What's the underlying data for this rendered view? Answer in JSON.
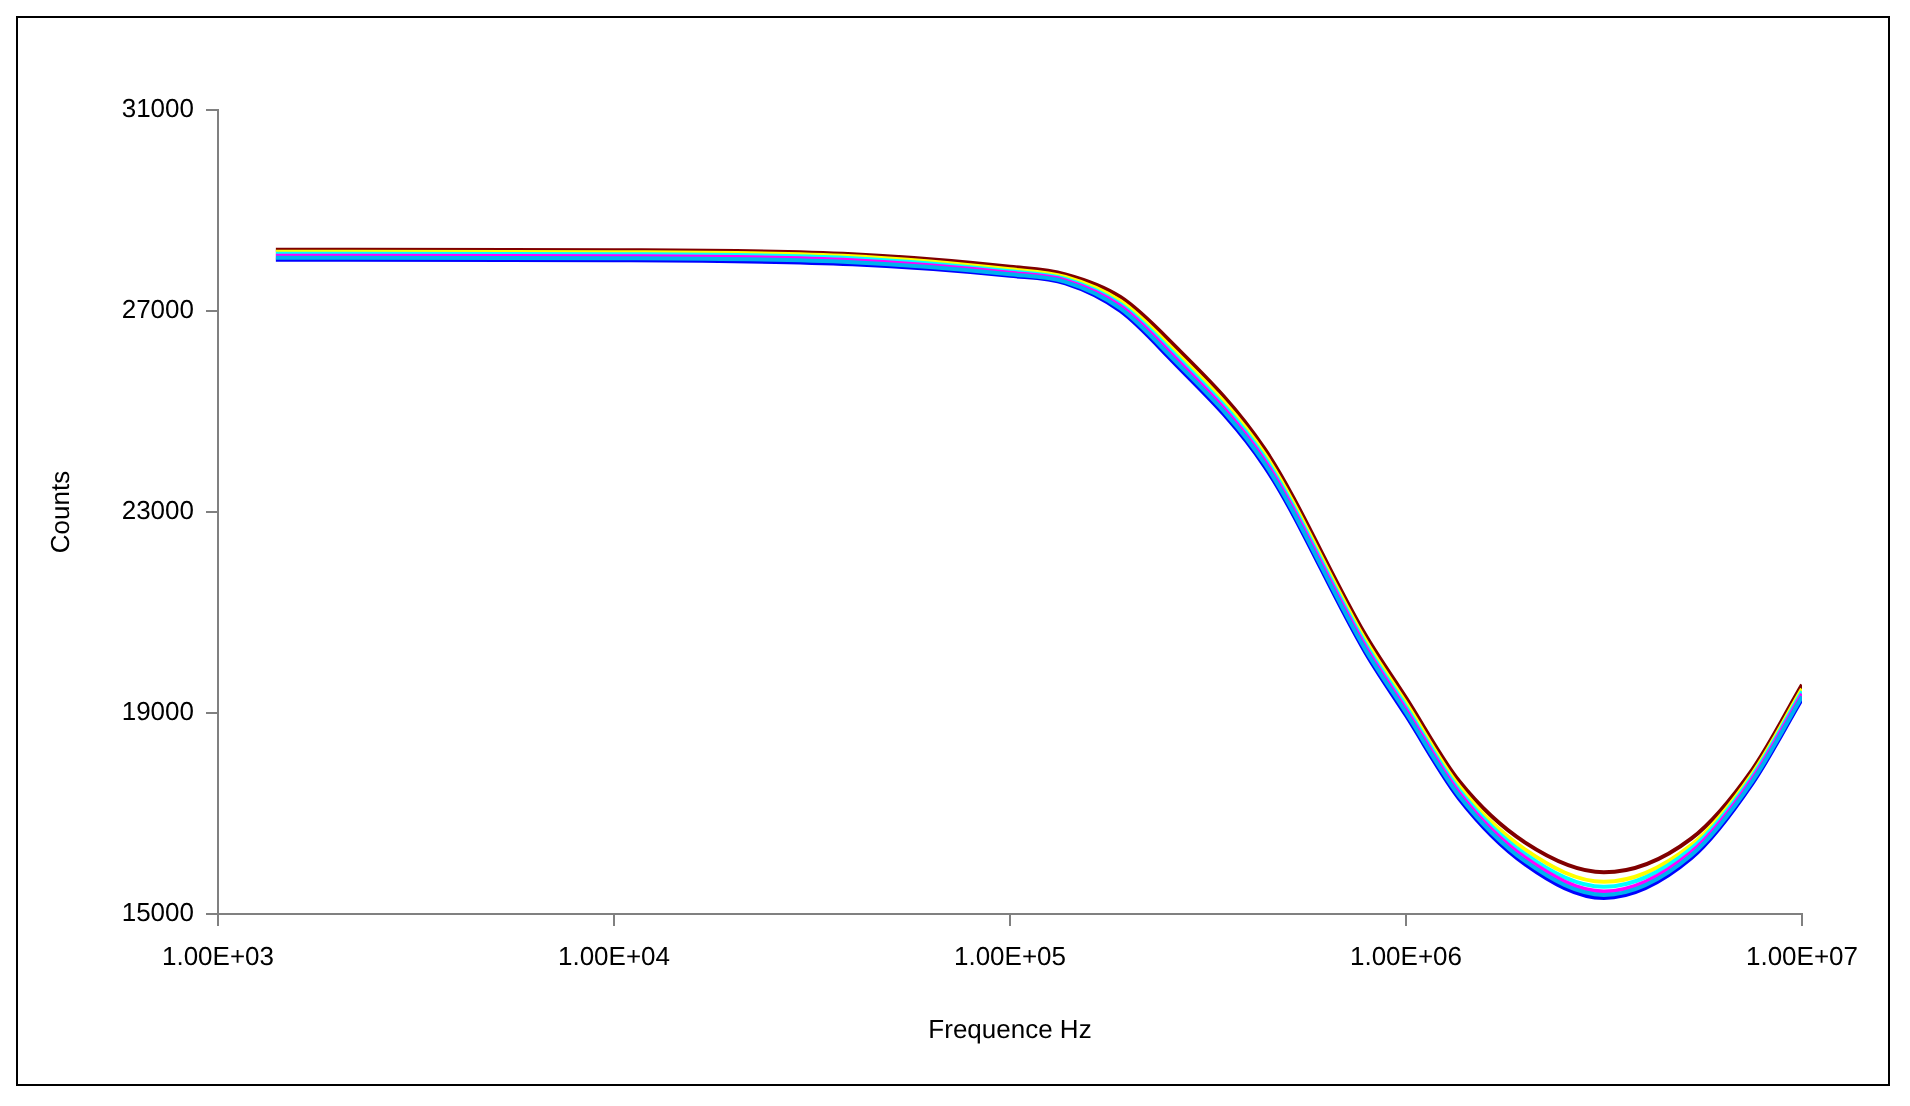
{
  "chart_data": {
    "type": "line",
    "xlabel": "Frequence Hz",
    "ylabel": "Counts",
    "log": "x",
    "x": [
      1400,
      10000,
      40000,
      100000,
      138000,
      190000,
      250000,
      440000,
      790000,
      1000000,
      1360000,
      2000000,
      3160000,
      5250000,
      7500000,
      10000000
    ],
    "series": [
      {
        "color": "#800000",
        "values": [
          28220,
          28210,
          28130,
          27880,
          27730,
          27280,
          26450,
          24250,
          20550,
          19300,
          17650,
          16420,
          15830,
          16500,
          17880,
          19560
        ]
      },
      {
        "color": "#ffff00",
        "values": [
          28180,
          28170,
          28090,
          27830,
          27680,
          27200,
          26350,
          24150,
          20450,
          19200,
          17550,
          16280,
          15640,
          16370,
          17800,
          19480
        ]
      },
      {
        "color": "#00ffff",
        "values": [
          28140,
          28130,
          28050,
          27790,
          27640,
          27140,
          26280,
          24080,
          20380,
          19130,
          17480,
          16190,
          15540,
          16300,
          17750,
          19430
        ]
      },
      {
        "color": "#ff00ff",
        "values": [
          28100,
          28090,
          28010,
          27760,
          27610,
          27100,
          26220,
          24020,
          20320,
          19070,
          17420,
          16120,
          15450,
          16230,
          17700,
          19380
        ]
      },
      {
        "color": "#0000ff",
        "values": [
          28020,
          28010,
          27930,
          27700,
          27550,
          27000,
          26100,
          23900,
          20200,
          18950,
          17300,
          15990,
          15320,
          16110,
          17600,
          19280
        ]
      },
      {
        "color": "#00b0f0",
        "values": [
          28060,
          28050,
          27970,
          27730,
          27580,
          27050,
          26160,
          23960,
          20260,
          19010,
          17360,
          16050,
          15380,
          16170,
          17650,
          19330
        ]
      }
    ],
    "xlim": [
      1000,
      10000000
    ],
    "xticks": [
      {
        "value": 1000,
        "label": "1.00E+03"
      },
      {
        "value": 10000,
        "label": "1.00E+04"
      },
      {
        "value": 100000,
        "label": "1.00E+05"
      },
      {
        "value": 1000000,
        "label": "1.00E+06"
      },
      {
        "value": 10000000,
        "label": "1.00E+07"
      }
    ],
    "ylim": [
      15000,
      31000
    ],
    "yticks": [
      15000,
      19000,
      23000,
      27000,
      31000
    ],
    "grid": false,
    "legend": false,
    "marker": "none",
    "line_style": "solid"
  }
}
